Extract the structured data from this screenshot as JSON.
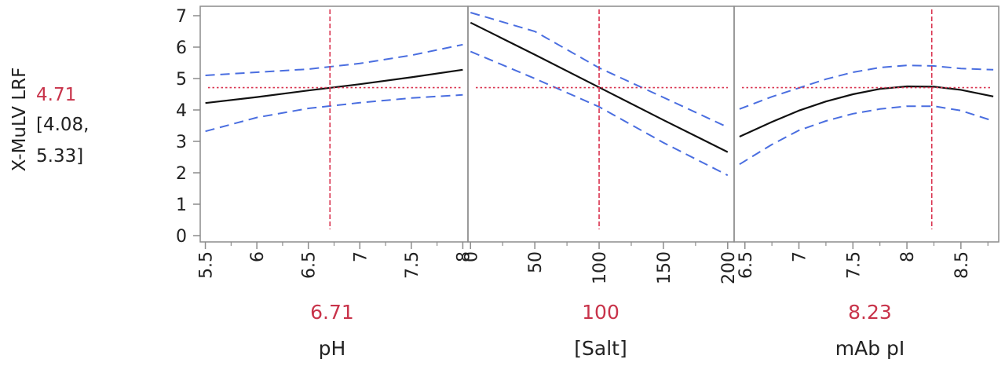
{
  "chart_data": {
    "type": "line",
    "response": {
      "label": "X-MuLV LRF",
      "predicted": "4.71",
      "ci_line1": "[4.08,",
      "ci_line2": "5.33]",
      "predicted_value": 4.71,
      "ylim": [
        -0.2,
        7.3
      ],
      "yticks": [
        0,
        1,
        2,
        3,
        4,
        5,
        6,
        7
      ]
    },
    "panels": [
      {
        "factor": "pH",
        "current_label": "6.71",
        "current": 6.71,
        "xlim": [
          5.45,
          8.05
        ],
        "ticks": [
          5.5,
          6,
          6.5,
          7,
          7.5,
          8
        ],
        "tick_labels": [
          "5.5",
          "6",
          "6.5",
          "7",
          "7.5",
          "8"
        ],
        "minor_ticks": [
          5.75,
          6.25,
          6.75,
          7.25,
          7.75
        ],
        "x": [
          5.5,
          6.0,
          6.5,
          7.0,
          7.5,
          8.0
        ],
        "y": [
          4.22,
          4.41,
          4.62,
          4.82,
          5.04,
          5.28
        ],
        "lower": [
          3.32,
          3.76,
          4.05,
          4.23,
          4.38,
          4.48
        ],
        "upper": [
          5.1,
          5.2,
          5.3,
          5.48,
          5.74,
          6.08
        ]
      },
      {
        "factor": "[Salt]",
        "current_label": "100",
        "current": 100,
        "xlim": [
          -2,
          205
        ],
        "ticks": [
          0,
          50,
          100,
          150,
          200
        ],
        "tick_labels": [
          "0",
          "50",
          "100",
          "150",
          "200"
        ],
        "minor_ticks": [
          25,
          75,
          125,
          175
        ],
        "x": [
          0,
          50,
          100,
          150,
          200
        ],
        "y": [
          6.78,
          5.76,
          4.72,
          3.68,
          2.66
        ],
        "lower": [
          5.86,
          5.0,
          4.1,
          2.96,
          1.92
        ],
        "upper": [
          7.1,
          6.5,
          5.34,
          4.4,
          3.45
        ]
      },
      {
        "factor": "mAb pI",
        "current_label": "8.23",
        "current": 8.23,
        "xlim": [
          6.4,
          8.85
        ],
        "ticks": [
          6.5,
          7,
          7.5,
          8,
          8.5
        ],
        "tick_labels": [
          "6.5",
          "7",
          "7.5",
          "8",
          "8.5"
        ],
        "minor_ticks": [
          6.75,
          7.25,
          7.75,
          8.25,
          8.75
        ],
        "x": [
          6.45,
          6.75,
          7.0,
          7.25,
          7.5,
          7.75,
          8.0,
          8.25,
          8.5,
          8.8
        ],
        "y": [
          3.15,
          3.62,
          3.98,
          4.27,
          4.5,
          4.67,
          4.75,
          4.74,
          4.64,
          4.43
        ],
        "lower": [
          2.27,
          2.9,
          3.35,
          3.65,
          3.88,
          4.03,
          4.12,
          4.12,
          3.98,
          3.65
        ],
        "upper": [
          4.03,
          4.42,
          4.7,
          4.98,
          5.2,
          5.35,
          5.42,
          5.4,
          5.32,
          5.28
        ]
      }
    ],
    "colors": {
      "fit": "#111111",
      "confidence": "#4a6ee0",
      "crosshair": "#d9334f",
      "frame": "#8c8c8c"
    }
  }
}
